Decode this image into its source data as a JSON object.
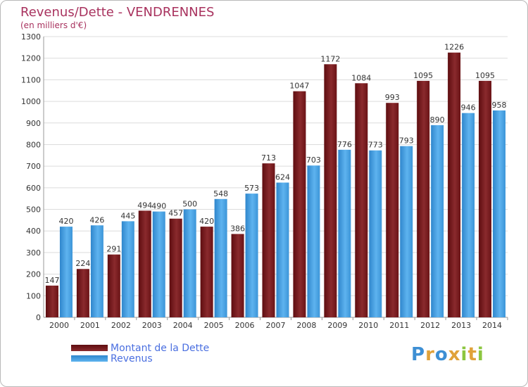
{
  "header": {
    "title": "Revenus/Dette - VENDRENNES",
    "subtitle": "(en milliers d'€)"
  },
  "legend": {
    "dette_label": "Montant de la Dette",
    "revenus_label": "Revenus"
  },
  "logo": {
    "text": "Proxiti"
  },
  "colors": {
    "dette": "#7a1a1d",
    "revenus": "#4aa3e3",
    "title": "#a8325e",
    "grid": "#dcdcdc"
  },
  "chart_data": {
    "type": "bar",
    "title": "Revenus/Dette - VENDRENNES",
    "ylabel": "(en milliers d'€)",
    "xlabel": "",
    "ylim": [
      0,
      1300
    ],
    "yticks": [
      0,
      100,
      200,
      300,
      400,
      500,
      600,
      700,
      800,
      900,
      1000,
      1100,
      1200,
      1300
    ],
    "grid": true,
    "categories": [
      "2000",
      "2001",
      "2002",
      "2003",
      "2004",
      "2005",
      "2006",
      "2007",
      "2008",
      "2009",
      "2010",
      "2011",
      "2012",
      "2013",
      "2014"
    ],
    "series": [
      {
        "name": "Montant de la Dette",
        "values": [
          147,
          224,
          291,
          494,
          457,
          420,
          386,
          713,
          1047,
          1172,
          1084,
          993,
          1095,
          1226,
          1095
        ]
      },
      {
        "name": "Revenus",
        "values": [
          420,
          426,
          445,
          490,
          500,
          548,
          573,
          624,
          703,
          776,
          773,
          793,
          890,
          946,
          958
        ]
      }
    ]
  }
}
